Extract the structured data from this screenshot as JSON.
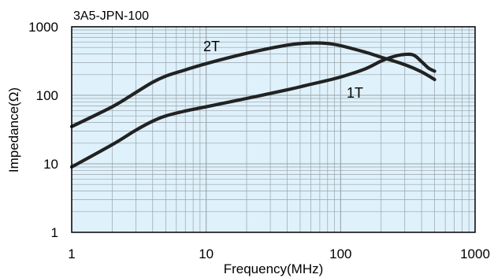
{
  "chart_data": {
    "type": "line",
    "title": "3A5-JPN-100",
    "xlabel": "Frequency(MHz)",
    "ylabel": "Impedance(Ω)",
    "x_scale": "log",
    "y_scale": "log",
    "xlim": [
      1,
      1000
    ],
    "ylim": [
      1,
      1000
    ],
    "x_ticks": [
      1,
      10,
      100,
      1000
    ],
    "x_tick_labels": [
      "1",
      "10",
      "100",
      "1000"
    ],
    "y_ticks": [
      1,
      10,
      100,
      1000
    ],
    "y_tick_labels": [
      "1",
      "10",
      "100",
      "1000"
    ],
    "grid": true,
    "colors": {
      "plot_background": "#dff1fb",
      "grid": "#9aa3aa",
      "line": "#222222",
      "frame": "#000000"
    },
    "series": [
      {
        "name": "2T",
        "x": [
          1,
          2,
          3,
          4,
          5,
          7,
          10,
          20,
          40,
          60,
          80,
          100,
          150,
          200,
          300,
          400,
          500
        ],
        "y": [
          35,
          68,
          110,
          155,
          190,
          235,
          290,
          410,
          540,
          580,
          570,
          530,
          430,
          360,
          280,
          220,
          170
        ]
      },
      {
        "name": "1T",
        "x": [
          1,
          2,
          3,
          4,
          5,
          7,
          10,
          20,
          40,
          60,
          80,
          100,
          150,
          200,
          250,
          300,
          350,
          400,
          450,
          500
        ],
        "y": [
          9,
          19,
          31,
          42,
          50,
          59,
          68,
          90,
          120,
          145,
          165,
          185,
          240,
          315,
          370,
          395,
          385,
          310,
          250,
          225
        ]
      }
    ]
  }
}
